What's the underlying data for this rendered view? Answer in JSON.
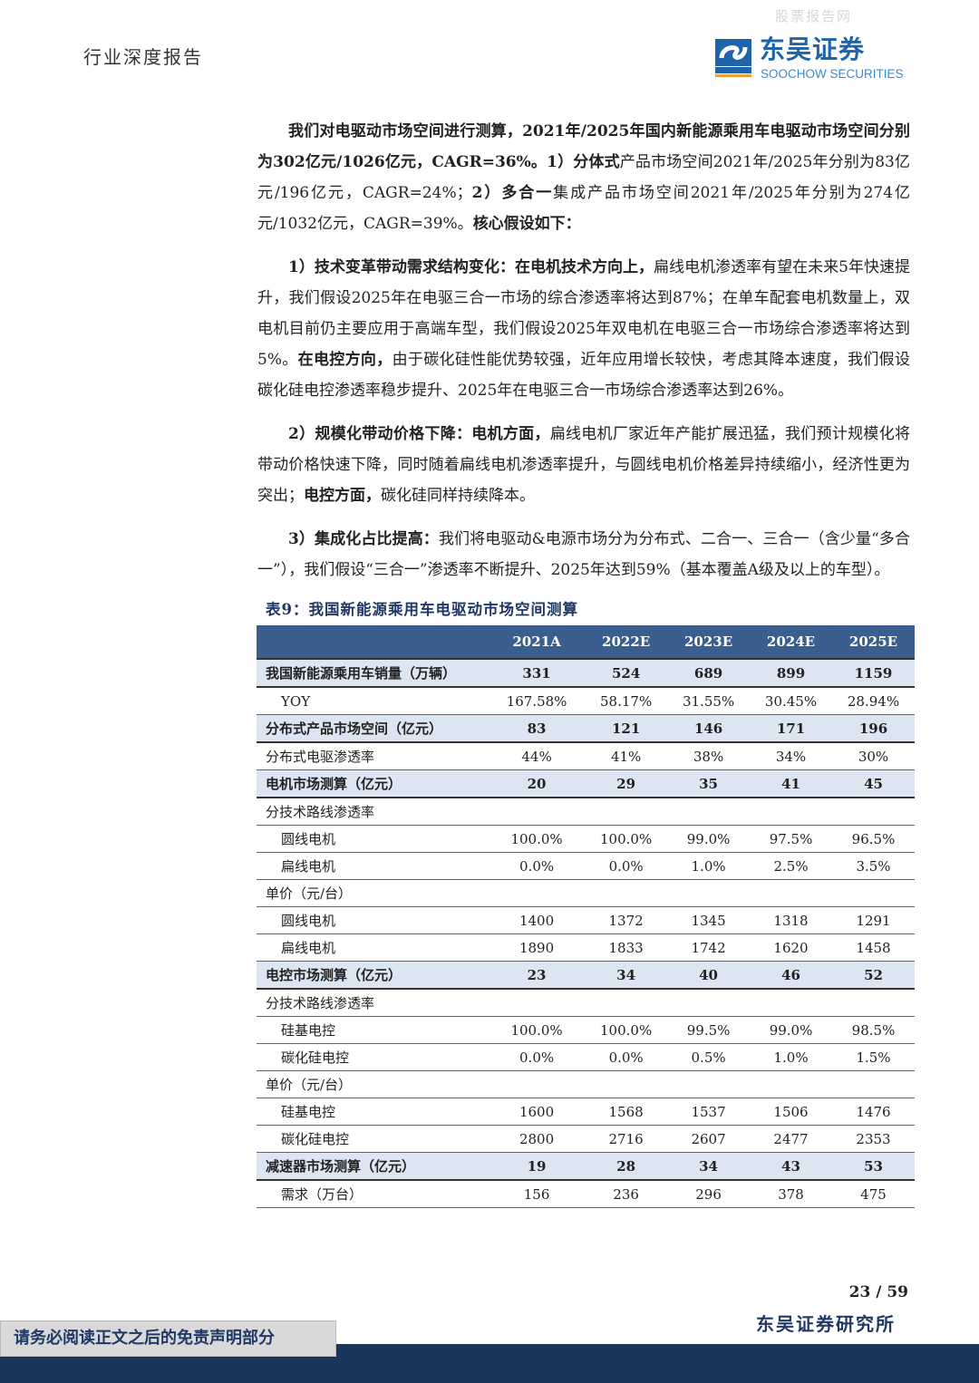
{
  "header": {
    "title": "行业深度报告",
    "watermark": "股票报告网",
    "logo_cn": "东吴证券",
    "logo_en": "SOOCHOW SECURITIES",
    "logo_mark": "SCS"
  },
  "paragraphs": [
    [
      {
        "t": "我们对电驱动市场空间进行测算，2021年/2025年国内新能源乘用车电驱动市场空间分别为302亿元/1026亿元，CAGR=36%。1）分体式",
        "b": true
      },
      {
        "t": "产品市场空间2021年/2025年分别为83亿元/196亿元，CAGR=24%；",
        "b": false
      },
      {
        "t": "2）多合一",
        "b": true
      },
      {
        "t": "集成产品市场空间2021年/2025年分别为274亿元/1032亿元，CAGR=39%。",
        "b": false
      },
      {
        "t": "核心假设如下：",
        "b": true
      }
    ],
    [
      {
        "t": "1）技术变革带动需求结构变化：在电机技术方向上，",
        "b": true
      },
      {
        "t": "扁线电机渗透率有望在未来5年快速提升，我们假设2025年在电驱三合一市场的综合渗透率将达到87%；在单车配套电机数量上，双电机目前仍主要应用于高端车型，我们假设2025年双电机在电驱三合一市场综合渗透率将达到5%。",
        "b": false
      },
      {
        "t": "在电控方向，",
        "b": true
      },
      {
        "t": "由于碳化硅性能优势较强，近年应用增长较快，考虑其降本速度，我们假设碳化硅电控渗透率稳步提升、2025年在电驱三合一市场综合渗透率达到26%。",
        "b": false
      }
    ],
    [
      {
        "t": "2）规模化带动价格下降：电机方面，",
        "b": true
      },
      {
        "t": "扁线电机厂家近年产能扩展迅猛，我们预计规模化将带动价格快速下降，同时随着扁线电机渗透率提升，与圆线电机价格差异持续缩小，经济性更为突出；",
        "b": false
      },
      {
        "t": "电控方面，",
        "b": true
      },
      {
        "t": "碳化硅同样持续降本。",
        "b": false
      }
    ],
    [
      {
        "t": "3）集成化占比提高：",
        "b": true
      },
      {
        "t": "我们将电驱动&电源市场分为分布式、二合一、三合一（含少量“多合一”），我们假设“三合一”渗透率不断提升、2025年达到59%（基本覆盖A级及以上的车型）。",
        "b": false
      }
    ]
  ],
  "table": {
    "caption": "表9：我国新能源乘用车电驱动市场空间测算",
    "columns": [
      "",
      "2021A",
      "2022E",
      "2023E",
      "2024E",
      "2025E"
    ],
    "rows": [
      {
        "type": "bold",
        "label": "我国新能源乘用车销量（万辆）",
        "values": [
          "331",
          "524",
          "689",
          "899",
          "1159"
        ]
      },
      {
        "type": "sub",
        "label": "YOY",
        "values": [
          "167.58%",
          "58.17%",
          "31.55%",
          "30.45%",
          "28.94%"
        ]
      },
      {
        "type": "bold",
        "label": "分布式产品市场空间（亿元）",
        "values": [
          "83",
          "121",
          "146",
          "171",
          "196"
        ]
      },
      {
        "type": "normal",
        "label": "分布式电驱渗透率",
        "values": [
          "44%",
          "41%",
          "38%",
          "34%",
          "30%"
        ]
      },
      {
        "type": "bold",
        "label": "电机市场测算（亿元）",
        "values": [
          "20",
          "29",
          "35",
          "41",
          "45"
        ]
      },
      {
        "type": "normal",
        "label": "分技术路线渗透率",
        "values": [
          "",
          "",
          "",
          "",
          ""
        ]
      },
      {
        "type": "sub",
        "label": "圆线电机",
        "values": [
          "100.0%",
          "100.0%",
          "99.0%",
          "97.5%",
          "96.5%"
        ]
      },
      {
        "type": "sub",
        "label": "扁线电机",
        "values": [
          "0.0%",
          "0.0%",
          "1.0%",
          "2.5%",
          "3.5%"
        ]
      },
      {
        "type": "normal",
        "label": "单价（元/台）",
        "values": [
          "",
          "",
          "",
          "",
          ""
        ]
      },
      {
        "type": "sub",
        "label": "圆线电机",
        "values": [
          "1400",
          "1372",
          "1345",
          "1318",
          "1291"
        ]
      },
      {
        "type": "sub",
        "label": "扁线电机",
        "values": [
          "1890",
          "1833",
          "1742",
          "1620",
          "1458"
        ]
      },
      {
        "type": "bold",
        "label": "电控市场测算（亿元）",
        "values": [
          "23",
          "34",
          "40",
          "46",
          "52"
        ]
      },
      {
        "type": "normal",
        "label": "分技术路线渗透率",
        "values": [
          "",
          "",
          "",
          "",
          ""
        ]
      },
      {
        "type": "sub",
        "label": "硅基电控",
        "values": [
          "100.0%",
          "100.0%",
          "99.5%",
          "99.0%",
          "98.5%"
        ]
      },
      {
        "type": "sub",
        "label": "碳化硅电控",
        "values": [
          "0.0%",
          "0.0%",
          "0.5%",
          "1.0%",
          "1.5%"
        ]
      },
      {
        "type": "normal",
        "label": "单价（元/台）",
        "values": [
          "",
          "",
          "",
          "",
          ""
        ]
      },
      {
        "type": "sub",
        "label": "硅基电控",
        "values": [
          "1600",
          "1568",
          "1537",
          "1506",
          "1476"
        ]
      },
      {
        "type": "sub",
        "label": "碳化硅电控",
        "values": [
          "2800",
          "2716",
          "2607",
          "2477",
          "2353"
        ]
      },
      {
        "type": "bold",
        "label": "减速器市场测算（亿元）",
        "values": [
          "19",
          "28",
          "34",
          "43",
          "53"
        ]
      },
      {
        "type": "sub",
        "label": "需求（万台）",
        "values": [
          "156",
          "236",
          "296",
          "378",
          "475"
        ]
      }
    ]
  },
  "footer": {
    "page": "23 / 59",
    "institute": "东吴证券研究所",
    "disclaimer": "请务必阅读正文之后的免责声明部分"
  },
  "colors": {
    "table_header": "#3a5f8e",
    "bold_row": "#dce6f2",
    "footer_bar": "#18365c",
    "caption": "#1f3864"
  }
}
